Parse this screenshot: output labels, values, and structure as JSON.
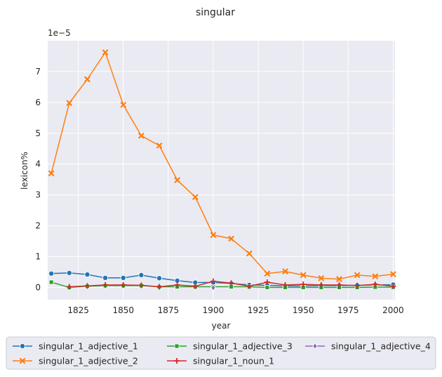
{
  "chart_data": {
    "type": "line",
    "title": "singular",
    "xlabel": "year",
    "ylabel": "lexicon%",
    "y_offset_text": "1e−5",
    "xlim": [
      1808,
      2001
    ],
    "ylim": [
      -0.4,
      8.0
    ],
    "xticks": [
      1825,
      1850,
      1875,
      1900,
      1925,
      1950,
      1975,
      2000
    ],
    "yticks": [
      0,
      1,
      2,
      3,
      4,
      5,
      6,
      7
    ],
    "grid": true,
    "legend_placement": "bottom",
    "x": [
      1810,
      1820,
      1830,
      1840,
      1850,
      1860,
      1870,
      1880,
      1890,
      1900,
      1910,
      1920,
      1930,
      1940,
      1950,
      1960,
      1970,
      1980,
      1990,
      2000
    ],
    "series": [
      {
        "name": "singular_1_adjective_1",
        "color": "#1f77b4",
        "marker": "circle",
        "values": [
          0.45,
          0.47,
          0.42,
          0.31,
          0.31,
          0.4,
          0.3,
          0.22,
          0.16,
          0.16,
          0.13,
          0.08,
          0.07,
          0.05,
          0.05,
          0.06,
          0.06,
          0.07,
          0.08,
          0.09
        ]
      },
      {
        "name": "singular_1_adjective_2",
        "color": "#ff7f0e",
        "marker": "x",
        "values": [
          3.7,
          5.98,
          6.75,
          7.62,
          5.92,
          4.92,
          4.6,
          3.48,
          2.93,
          1.7,
          1.58,
          1.1,
          0.45,
          0.52,
          0.4,
          0.3,
          0.27,
          0.4,
          0.36,
          0.43
        ]
      },
      {
        "name": "singular_1_adjective_3",
        "color": "#2ca02c",
        "marker": "square",
        "values": [
          0.17,
          0.0,
          0.04,
          0.06,
          0.06,
          0.06,
          0.02,
          0.02,
          0.02,
          0.02,
          0.02,
          0.02,
          0.0,
          0.0,
          0.0,
          0.0,
          0.0,
          0.0,
          0.01,
          0.01
        ]
      },
      {
        "name": "singular_1_noun_1",
        "color": "#d62728",
        "marker": "plus",
        "values": [
          null,
          0.02,
          0.05,
          0.08,
          0.08,
          0.07,
          0.02,
          0.08,
          0.04,
          0.2,
          0.14,
          0.04,
          0.17,
          0.08,
          0.1,
          0.08,
          0.08,
          0.06,
          0.1,
          0.04
        ]
      },
      {
        "name": "singular_1_adjective_4",
        "color": "#9467bd",
        "marker": "diamond",
        "values": [
          null,
          null,
          null,
          null,
          null,
          null,
          null,
          null,
          null,
          -0.01,
          null,
          null,
          null,
          null,
          null,
          null,
          null,
          null,
          null,
          null
        ]
      }
    ]
  }
}
